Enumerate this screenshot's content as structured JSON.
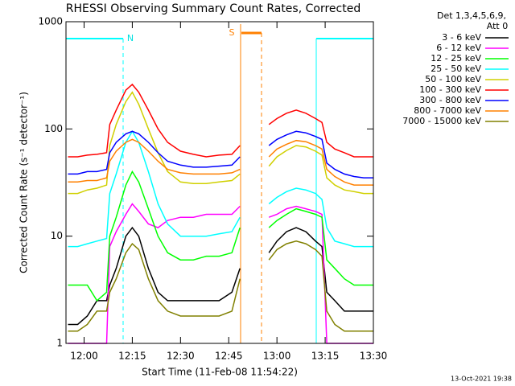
{
  "chart_data": {
    "type": "line",
    "title": "RHESSI Observing Summary Count Rates, Corrected",
    "x_label": "Start Time (11-Feb-08 11:54:22)",
    "y_label": "Corrected Count Rate (s⁻¹ detector⁻¹)",
    "legend_title": [
      "Det 1,3,4,5,6,9,",
      "Att 0"
    ],
    "footer": "13-Oct-2021 19:38",
    "annotations": [
      {
        "label": "N"
      },
      {
        "label": "S"
      }
    ],
    "log_y": true,
    "legend": "right",
    "xlim": [
      -5.63,
      90
    ],
    "xticks": [
      {
        "value": 0,
        "label": "12:00"
      },
      {
        "value": 15,
        "label": "12:15"
      },
      {
        "value": 30,
        "label": "12:30"
      },
      {
        "value": 45,
        "label": "12:45"
      },
      {
        "value": 60,
        "label": "13:00"
      },
      {
        "value": 75,
        "label": "13:15"
      },
      {
        "value": 90,
        "label": "13:30"
      }
    ],
    "ylim": [
      1,
      1000
    ],
    "yticks": [
      1,
      10,
      100,
      1000
    ],
    "x": [
      -5,
      -2,
      1,
      4,
      7,
      8,
      10,
      13,
      15,
      17,
      20,
      23,
      26,
      30,
      34,
      38,
      42,
      46,
      48.5,
      53,
      57.5,
      60,
      63,
      66,
      69,
      72,
      74,
      75.5,
      78,
      81,
      84,
      87,
      90
    ],
    "series": [
      {
        "name": "3 - 6 keV",
        "color": "#000000",
        "values": [
          1.5,
          1.5,
          1.8,
          2.5,
          2.5,
          3.5,
          5,
          10,
          12,
          10,
          5,
          3,
          2.5,
          2.5,
          2.5,
          2.5,
          2.5,
          3,
          5,
          null,
          7,
          9,
          11,
          12,
          11,
          9,
          8,
          3,
          2.5,
          2,
          2,
          2,
          2
        ]
      },
      {
        "name": "6 - 12 keV",
        "color": "#ff00ff",
        "values": [
          1,
          1,
          1,
          1,
          1,
          8,
          11,
          16,
          20,
          17,
          13,
          12,
          14,
          15,
          15,
          16,
          16,
          16,
          19,
          null,
          15,
          16,
          18,
          19,
          18,
          17,
          16,
          1,
          1,
          1,
          1,
          1,
          1
        ]
      },
      {
        "name": "12 - 25 keV",
        "color": "#00ff00",
        "values": [
          3.5,
          3.5,
          3.5,
          2.5,
          3,
          10,
          15,
          30,
          40,
          32,
          18,
          10,
          7,
          6,
          6,
          6.5,
          6.5,
          7,
          12,
          null,
          12,
          14,
          16,
          18,
          17,
          16,
          15,
          6,
          5,
          4,
          3.5,
          3.5,
          3.5
        ]
      },
      {
        "name": "25 - 50 keV",
        "color": "#00ffff",
        "values": [
          8,
          8,
          8.5,
          9,
          9.5,
          25,
          38,
          75,
          95,
          75,
          40,
          20,
          13,
          10,
          10,
          10,
          10.5,
          11,
          15,
          null,
          20,
          23,
          26,
          28,
          27,
          25,
          22,
          12,
          9,
          8.5,
          8,
          8,
          8
        ]
      },
      {
        "name": "50 - 100 keV",
        "color": "#d0d000",
        "values": [
          25,
          25,
          27,
          28,
          30,
          70,
          110,
          180,
          220,
          170,
          100,
          60,
          40,
          32,
          31,
          31,
          32,
          33,
          38,
          null,
          45,
          55,
          63,
          70,
          68,
          62,
          57,
          35,
          30,
          27,
          26,
          25,
          25
        ]
      },
      {
        "name": "100 - 300 keV",
        "color": "#ff0000",
        "values": [
          55,
          55,
          57,
          58,
          60,
          110,
          150,
          230,
          260,
          220,
          150,
          100,
          75,
          62,
          58,
          55,
          57,
          58,
          70,
          null,
          110,
          125,
          140,
          150,
          140,
          125,
          115,
          75,
          65,
          60,
          55,
          55,
          55
        ]
      },
      {
        "name": "300 - 800 keV",
        "color": "#0000ff",
        "values": [
          38,
          38,
          40,
          40,
          42,
          60,
          75,
          90,
          95,
          90,
          75,
          60,
          50,
          46,
          44,
          44,
          45,
          46,
          55,
          null,
          70,
          80,
          88,
          95,
          92,
          85,
          80,
          48,
          42,
          38,
          36,
          35,
          35
        ]
      },
      {
        "name": "800 - 7000 keV",
        "color": "#ff8000",
        "values": [
          32,
          32,
          33,
          33,
          35,
          50,
          62,
          75,
          80,
          75,
          62,
          50,
          42,
          39,
          38,
          38,
          38,
          39,
          42,
          null,
          55,
          65,
          72,
          78,
          76,
          70,
          65,
          42,
          36,
          32,
          30,
          30,
          30
        ]
      },
      {
        "name": "7000 - 15000 keV",
        "color": "#808000",
        "values": [
          1.3,
          1.3,
          1.5,
          2,
          2,
          3,
          4,
          7,
          8.5,
          7.5,
          4,
          2.5,
          2,
          1.8,
          1.8,
          1.8,
          1.8,
          2,
          4,
          null,
          6,
          7.5,
          8.5,
          9,
          8.5,
          7.5,
          6.5,
          2,
          1.5,
          1.3,
          1.3,
          1.3,
          1.3
        ]
      }
    ]
  }
}
